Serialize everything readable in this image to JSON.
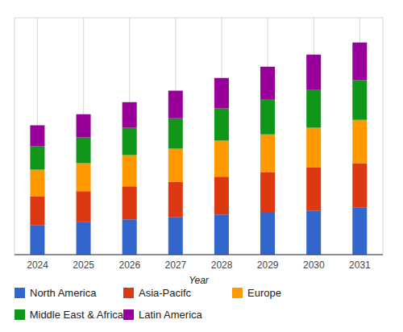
{
  "chart_data": {
    "type": "bar",
    "stacked": true,
    "x_label": "Year",
    "categories": [
      "2024",
      "2025",
      "2026",
      "2027",
      "2028",
      "2029",
      "2030",
      "2031"
    ],
    "series": [
      {
        "name": "North America",
        "color": "#3366cc",
        "values": [
          1.25,
          1.39,
          1.49,
          1.59,
          1.69,
          1.8,
          1.86,
          2.0
        ]
      },
      {
        "name": "Asia-Pacifc",
        "color": "#dc3912",
        "values": [
          1.22,
          1.29,
          1.39,
          1.49,
          1.6,
          1.69,
          1.83,
          1.86
        ]
      },
      {
        "name": "Europe",
        "color": "#ff9900",
        "values": [
          1.12,
          1.18,
          1.32,
          1.39,
          1.52,
          1.59,
          1.67,
          1.83
        ]
      },
      {
        "name": "Middle East & Africa",
        "color": "#109618",
        "values": [
          0.99,
          1.09,
          1.16,
          1.29,
          1.36,
          1.46,
          1.59,
          1.67
        ]
      },
      {
        "name": "Latin America",
        "color": "#990099",
        "values": [
          0.88,
          0.98,
          1.08,
          1.16,
          1.29,
          1.39,
          1.49,
          1.59
        ]
      }
    ],
    "ylim": [
      0,
      10
    ],
    "yticks": [
      0,
      1,
      2,
      3,
      4,
      5,
      6,
      7,
      8,
      9,
      10
    ],
    "grid": true,
    "legend": "bottom",
    "tick_labels": "x"
  }
}
